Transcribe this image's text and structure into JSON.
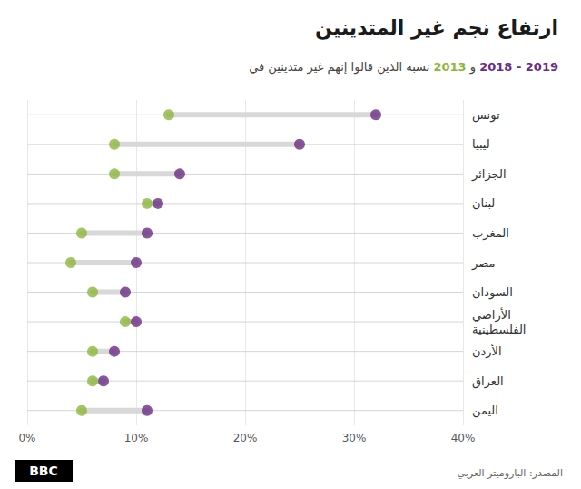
{
  "chart_data": {
    "type": "dumbbell",
    "title": "ارتفاع نجم غير المتدينين",
    "subtitle": "نسبة الذين قالوا إنهم غير متدينين في 2013 و 2018 - 2019",
    "categories": [
      "تونس",
      "ليبيا",
      "الجزائر",
      "لبنان",
      "المغرب",
      "مصر",
      "السودان",
      "الأراضي\nالفلسطينية",
      "الأردن",
      "العراق",
      "اليمن"
    ],
    "series": [
      {
        "name": "2013",
        "color": "#8db63c",
        "values": [
          13,
          8,
          8,
          11,
          5,
          4,
          6,
          9,
          6,
          6,
          5
        ]
      },
      {
        "name": "2018 - 2019",
        "color": "#6a2c82",
        "values": [
          32,
          25,
          14,
          12,
          11,
          10,
          9,
          10,
          8,
          7,
          11
        ]
      }
    ],
    "xlim": [
      0,
      40
    ],
    "xticks": [
      {
        "value": 0,
        "label": "0%"
      },
      {
        "value": 10,
        "label": "10%"
      },
      {
        "value": 20,
        "label": "20%"
      },
      {
        "value": 30,
        "label": "30%"
      },
      {
        "value": 40,
        "label": "40%"
      }
    ],
    "grid": true,
    "source": "المصدر: الباروميتر العربي",
    "logo": "BBC"
  }
}
